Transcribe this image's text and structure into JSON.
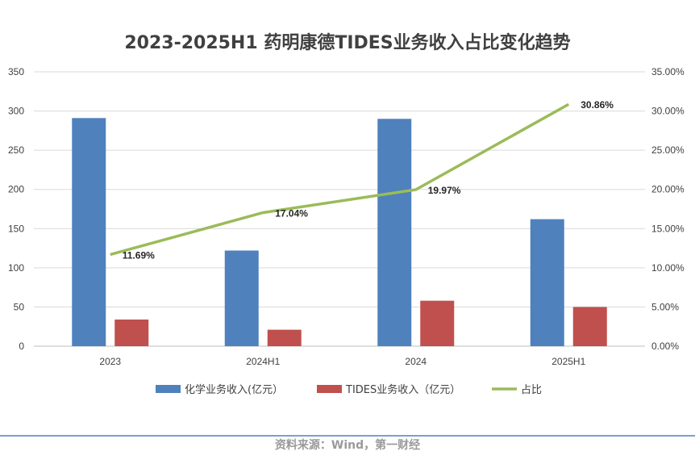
{
  "chart_data": {
    "type": "bar+line",
    "title": "2023-2025H1 药明康德TIDES业务收入占比变化趋势",
    "categories": [
      "2023",
      "2024H1",
      "2024",
      "2025H1"
    ],
    "series": [
      {
        "name": "化学业务收入(亿元）",
        "type": "bar",
        "axis": "left",
        "color": "#4F81BD",
        "values": [
          291,
          122,
          290,
          162
        ]
      },
      {
        "name": "TIDES业务收入（亿元）",
        "type": "bar",
        "axis": "left",
        "color": "#C0504D",
        "values": [
          34,
          21,
          58,
          50
        ]
      },
      {
        "name": "占比",
        "type": "line",
        "axis": "right",
        "color": "#9BBB59",
        "values": [
          11.69,
          17.04,
          19.97,
          30.86
        ],
        "labels": [
          "11.69%",
          "17.04%",
          "19.97%",
          "30.86%"
        ]
      }
    ],
    "y_left": {
      "min": 0,
      "max": 350,
      "ticks": [
        "0",
        "50",
        "100",
        "150",
        "200",
        "250",
        "300",
        "350"
      ]
    },
    "y_right": {
      "min": 0,
      "max": 35,
      "ticks": [
        "0.00%",
        "5.00%",
        "10.00%",
        "15.00%",
        "20.00%",
        "25.00%",
        "30.00%",
        "35.00%"
      ]
    },
    "grid": true,
    "legend_position": "bottom"
  },
  "source": "资料来源：Wind，第一财经"
}
